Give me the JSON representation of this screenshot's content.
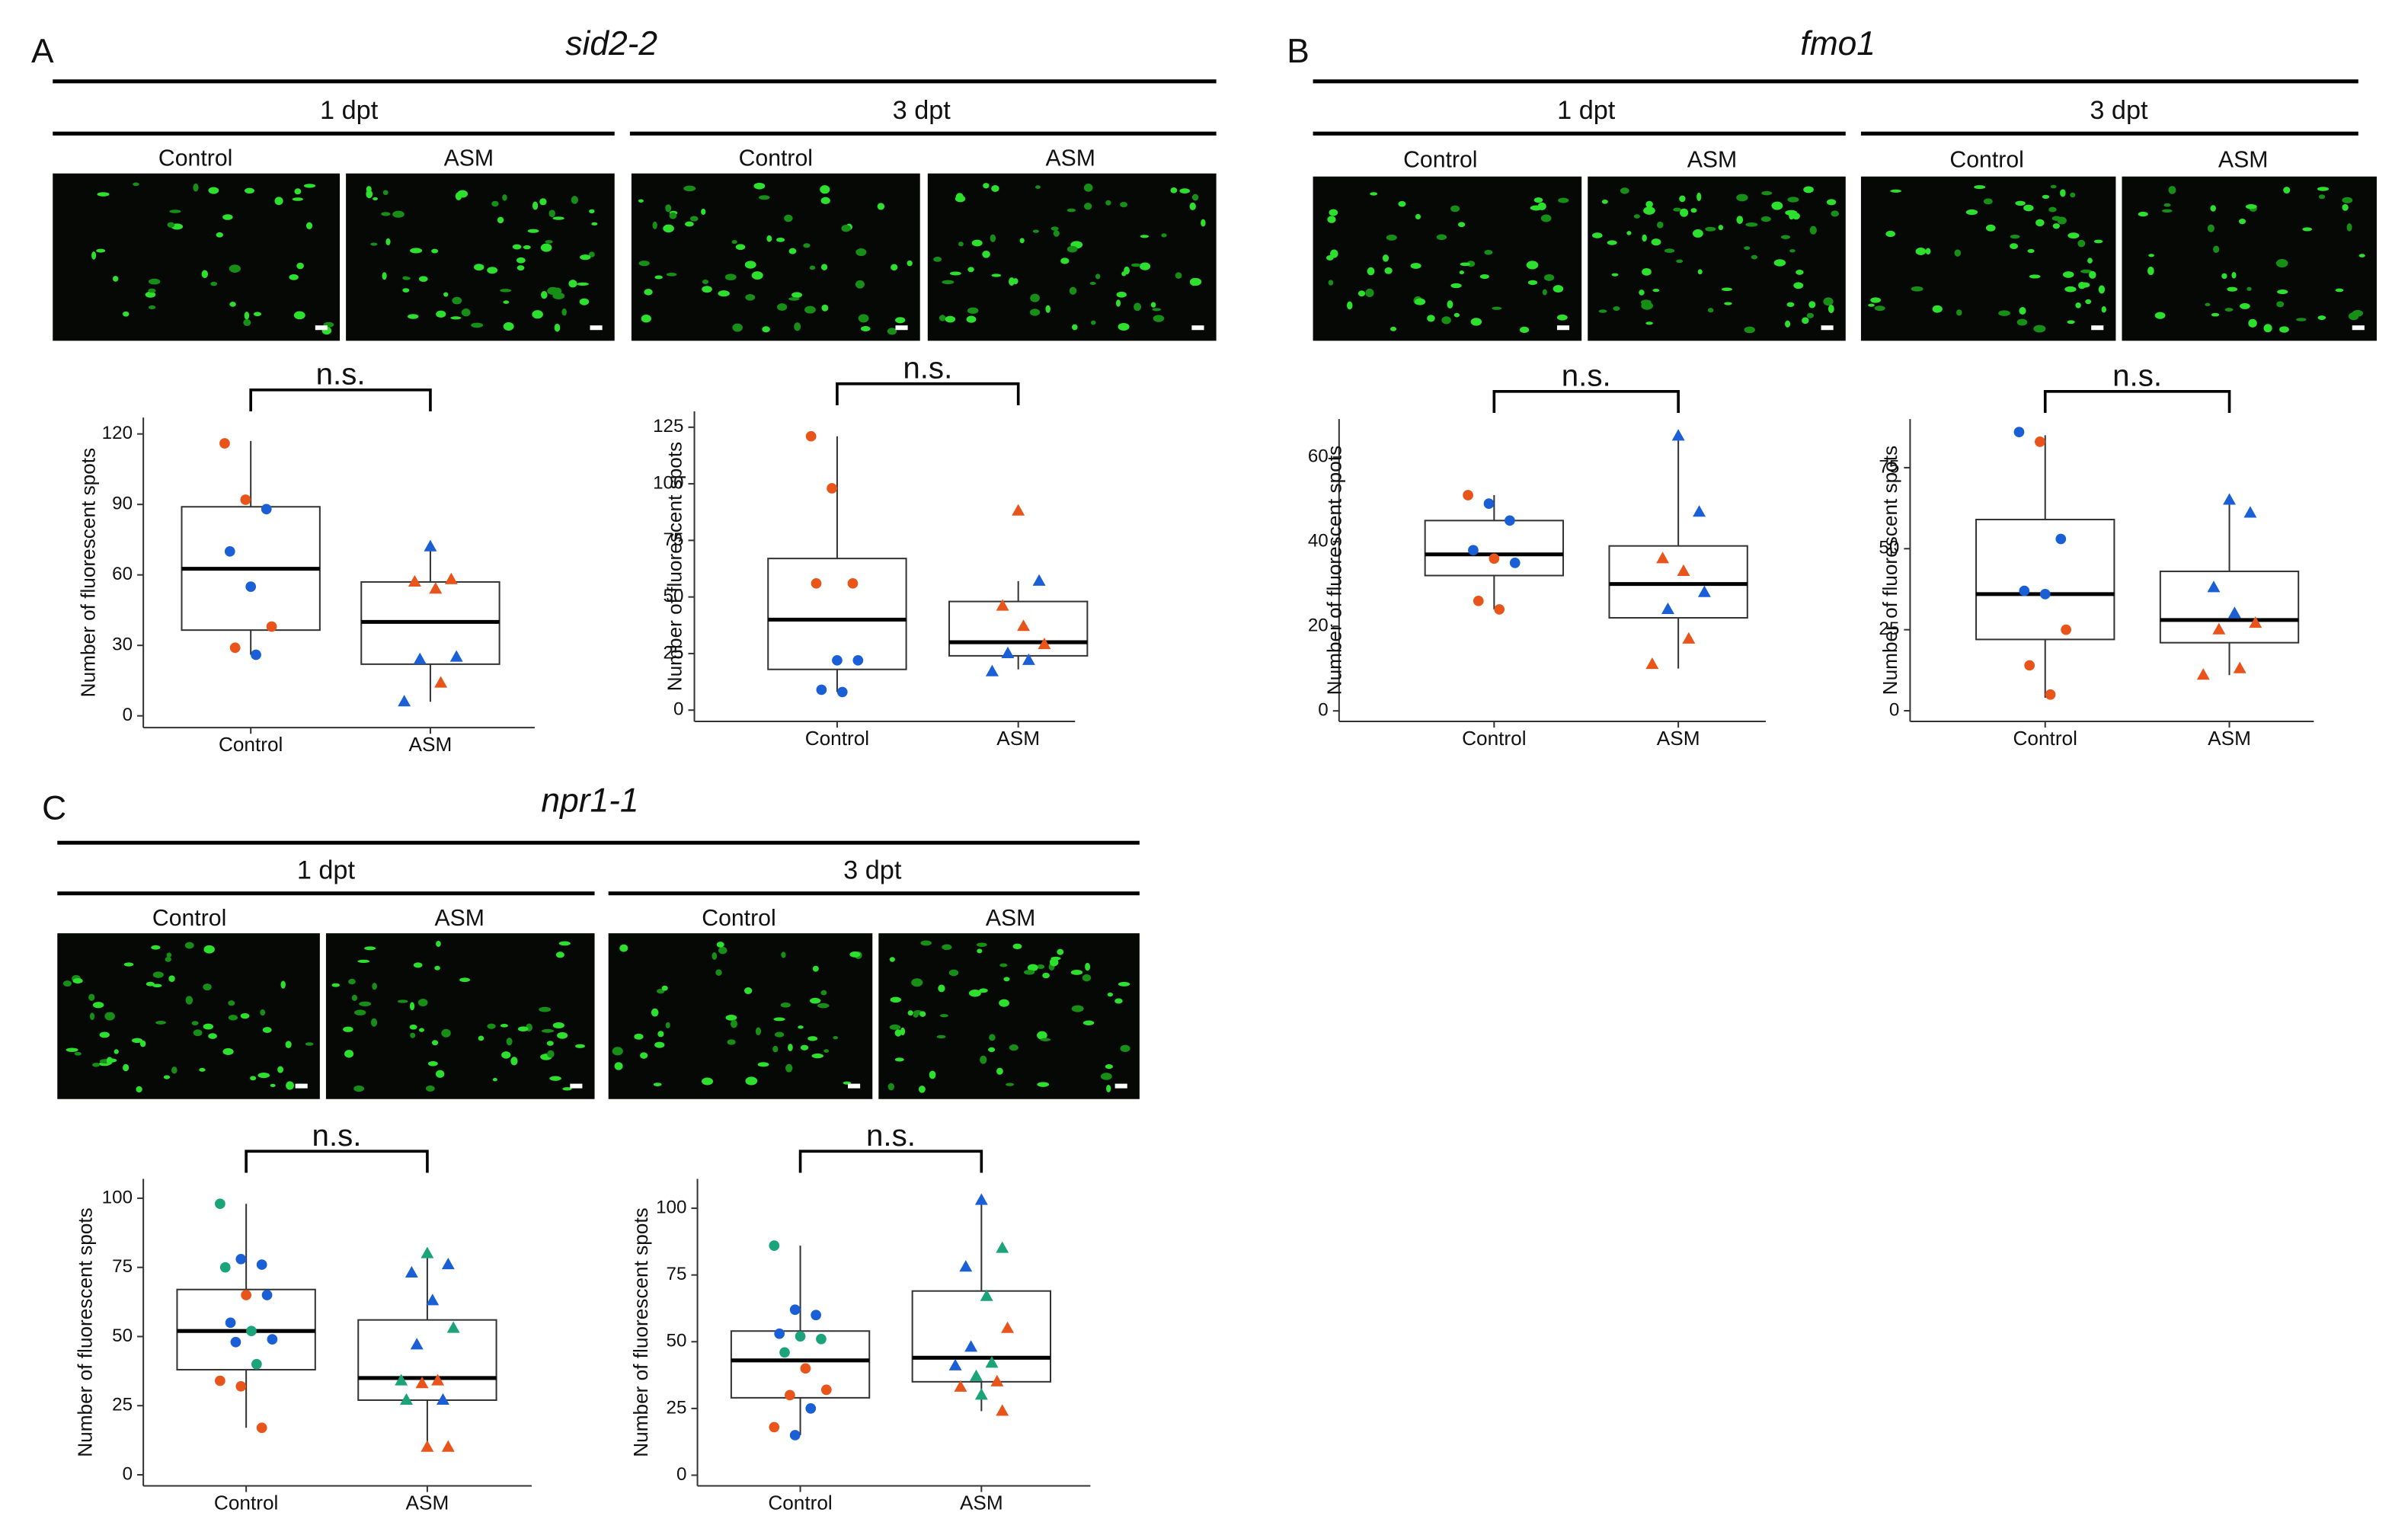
{
  "figure": {
    "panels": [
      {
        "label": "A",
        "title": "sid2-2",
        "timepoints": [
          {
            "label": "1 dpt",
            "images": [
              "Control",
              "ASM"
            ]
          },
          {
            "label": "3 dpt",
            "images": [
              "Control",
              "ASM"
            ]
          }
        ]
      },
      {
        "label": "B",
        "title": "fmo1",
        "timepoints": [
          {
            "label": "1 dpt",
            "images": [
              "Control",
              "ASM"
            ]
          },
          {
            "label": "3 dpt",
            "images": [
              "Control",
              "ASM"
            ]
          }
        ]
      },
      {
        "label": "C",
        "title": "npr1-1",
        "timepoints": [
          {
            "label": "1 dpt",
            "images": [
              "Control",
              "ASM"
            ]
          },
          {
            "label": "3 dpt",
            "images": [
              "Control",
              "ASM"
            ]
          }
        ]
      }
    ]
  },
  "chart_data": [
    {
      "type": "box",
      "ylabel": "Number of fluorescent spots",
      "annotation": "n.s.",
      "categories": [
        "Control",
        "ASM"
      ],
      "markers": [
        "circle",
        "triangle"
      ],
      "ylim": [
        -5,
        127
      ],
      "yticks": [
        0,
        30,
        60,
        90,
        120
      ],
      "boxes": [
        {
          "low": 26,
          "q1": 36.5,
          "median": 62.6,
          "q3": 89,
          "high": 117
        },
        {
          "low": 6,
          "q1": 22,
          "median": 40,
          "q3": 57,
          "high": 73
        }
      ],
      "points": [
        [
          {
            "value": 116,
            "color": "#e8541a"
          },
          {
            "value": 92,
            "color": "#e8541a"
          },
          {
            "value": 88,
            "color": "#1a5fd6"
          },
          {
            "value": 70,
            "color": "#1a5fd6"
          },
          {
            "value": 55,
            "color": "#1a5fd6"
          },
          {
            "value": 38,
            "color": "#e8541a"
          },
          {
            "value": 29,
            "color": "#e8541a"
          },
          {
            "value": 26,
            "color": "#1a5fd6"
          }
        ],
        [
          {
            "value": 72,
            "color": "#1a5fd6"
          },
          {
            "value": 58,
            "color": "#e8541a"
          },
          {
            "value": 57,
            "color": "#e8541a"
          },
          {
            "value": 54,
            "color": "#e8541a"
          },
          {
            "value": 25,
            "color": "#1a5fd6"
          },
          {
            "value": 24,
            "color": "#1a5fd6"
          },
          {
            "value": 14,
            "color": "#e8541a"
          },
          {
            "value": 6,
            "color": "#1a5fd6"
          }
        ]
      ]
    },
    {
      "type": "box",
      "ylabel": "Number of fluorescent spots",
      "annotation": "n.s.",
      "categories": [
        "Control",
        "ASM"
      ],
      "markers": [
        "circle",
        "triangle"
      ],
      "ylim": [
        -5,
        132
      ],
      "yticks": [
        0,
        25,
        50,
        75,
        100,
        125
      ],
      "boxes": [
        {
          "low": 8,
          "q1": 18,
          "median": 40,
          "q3": 67,
          "high": 121
        },
        {
          "low": 18,
          "q1": 24,
          "median": 30,
          "q3": 48,
          "high": 57
        }
      ],
      "points": [
        [
          {
            "value": 121,
            "color": "#e8541a"
          },
          {
            "value": 98,
            "color": "#e8541a"
          },
          {
            "value": 56,
            "color": "#e8541a"
          },
          {
            "value": 56,
            "color": "#e8541a"
          },
          {
            "value": 22,
            "color": "#1a5fd6"
          },
          {
            "value": 22,
            "color": "#1a5fd6"
          },
          {
            "value": 9,
            "color": "#1a5fd6"
          },
          {
            "value": 8,
            "color": "#1a5fd6"
          }
        ],
        [
          {
            "value": 88,
            "color": "#e8541a"
          },
          {
            "value": 57,
            "color": "#1a5fd6"
          },
          {
            "value": 46,
            "color": "#e8541a"
          },
          {
            "value": 37,
            "color": "#e8541a"
          },
          {
            "value": 29,
            "color": "#e8541a"
          },
          {
            "value": 25,
            "color": "#1a5fd6"
          },
          {
            "value": 22,
            "color": "#1a5fd6"
          },
          {
            "value": 17,
            "color": "#1a5fd6"
          }
        ]
      ]
    },
    {
      "type": "box",
      "ylabel": "Number of fluorescent spots",
      "annotation": "n.s.",
      "categories": [
        "Control",
        "ASM"
      ],
      "markers": [
        "circle",
        "triangle"
      ],
      "ylim": [
        -2.5,
        69
      ],
      "yticks": [
        0,
        20,
        40,
        60
      ],
      "boxes": [
        {
          "low": 24,
          "q1": 32,
          "median": 37,
          "q3": 45,
          "high": 51
        },
        {
          "low": 10,
          "q1": 22,
          "median": 30,
          "q3": 39,
          "high": 65
        }
      ],
      "points": [
        [
          {
            "value": 51,
            "color": "#e8541a"
          },
          {
            "value": 49,
            "color": "#1a5fd6"
          },
          {
            "value": 45,
            "color": "#1a5fd6"
          },
          {
            "value": 38,
            "color": "#1a5fd6"
          },
          {
            "value": 36,
            "color": "#e8541a"
          },
          {
            "value": 35,
            "color": "#1a5fd6"
          },
          {
            "value": 26,
            "color": "#e8541a"
          },
          {
            "value": 24,
            "color": "#e8541a"
          }
        ],
        [
          {
            "value": 65,
            "color": "#1a5fd6"
          },
          {
            "value": 47,
            "color": "#1a5fd6"
          },
          {
            "value": 36,
            "color": "#e8541a"
          },
          {
            "value": 33,
            "color": "#e8541a"
          },
          {
            "value": 28,
            "color": "#1a5fd6"
          },
          {
            "value": 24,
            "color": "#1a5fd6"
          },
          {
            "value": 17,
            "color": "#e8541a"
          },
          {
            "value": 11,
            "color": "#e8541a"
          }
        ]
      ]
    },
    {
      "type": "box",
      "ylabel": "Number of fluorescent spots",
      "annotation": "n.s.",
      "categories": [
        "Control",
        "ASM"
      ],
      "markers": [
        "circle",
        "triangle"
      ],
      "ylim": [
        -3.3,
        90
      ],
      "yticks": [
        0,
        25,
        50,
        75
      ],
      "boxes": [
        {
          "low": 4,
          "q1": 22,
          "median": 36,
          "q3": 59,
          "high": 85
        },
        {
          "low": 11,
          "q1": 21,
          "median": 28,
          "q3": 43,
          "high": 64
        }
      ],
      "points": [
        [
          {
            "value": 86,
            "color": "#1a5fd6"
          },
          {
            "value": 83,
            "color": "#e8541a"
          },
          {
            "value": 53,
            "color": "#1a5fd6"
          },
          {
            "value": 37,
            "color": "#1a5fd6"
          },
          {
            "value": 36,
            "color": "#1a5fd6"
          },
          {
            "value": 25,
            "color": "#e8541a"
          },
          {
            "value": 14,
            "color": "#e8541a"
          },
          {
            "value": 5,
            "color": "#e8541a"
          }
        ],
        [
          {
            "value": 65,
            "color": "#1a5fd6"
          },
          {
            "value": 61,
            "color": "#1a5fd6"
          },
          {
            "value": 38,
            "color": "#1a5fd6"
          },
          {
            "value": 30,
            "color": "#1a5fd6"
          },
          {
            "value": 27,
            "color": "#e8541a"
          },
          {
            "value": 25,
            "color": "#e8541a"
          },
          {
            "value": 13,
            "color": "#e8541a"
          },
          {
            "value": 11,
            "color": "#e8541a"
          }
        ]
      ]
    },
    {
      "type": "box",
      "ylabel": "Number of fluorescent spots",
      "annotation": "n.s.",
      "categories": [
        "Control",
        "ASM"
      ],
      "markers": [
        "circle",
        "triangle"
      ],
      "ylim": [
        -4,
        107
      ],
      "yticks": [
        0,
        25,
        50,
        75,
        100
      ],
      "boxes": [
        {
          "low": 17,
          "q1": 38,
          "median": 52,
          "q3": 67,
          "high": 98
        },
        {
          "low": 10,
          "q1": 27,
          "median": 35,
          "q3": 56,
          "high": 80
        }
      ],
      "points": [
        [
          {
            "value": 98,
            "color": "#1ba37a"
          },
          {
            "value": 78,
            "color": "#1a5fd6"
          },
          {
            "value": 76,
            "color": "#1a5fd6"
          },
          {
            "value": 75,
            "color": "#1ba37a"
          },
          {
            "value": 65,
            "color": "#e8541a"
          },
          {
            "value": 65,
            "color": "#1a5fd6"
          },
          {
            "value": 55,
            "color": "#1a5fd6"
          },
          {
            "value": 52,
            "color": "#1ba37a"
          },
          {
            "value": 49,
            "color": "#1a5fd6"
          },
          {
            "value": 48,
            "color": "#1a5fd6"
          },
          {
            "value": 40,
            "color": "#1ba37a"
          },
          {
            "value": 34,
            "color": "#e8541a"
          },
          {
            "value": 32,
            "color": "#e8541a"
          },
          {
            "value": 17,
            "color": "#e8541a"
          }
        ],
        [
          {
            "value": 80,
            "color": "#1ba37a"
          },
          {
            "value": 76,
            "color": "#1a5fd6"
          },
          {
            "value": 73,
            "color": "#1a5fd6"
          },
          {
            "value": 63,
            "color": "#1a5fd6"
          },
          {
            "value": 53,
            "color": "#1ba37a"
          },
          {
            "value": 47,
            "color": "#1a5fd6"
          },
          {
            "value": 34,
            "color": "#e8541a"
          },
          {
            "value": 34,
            "color": "#1ba37a"
          },
          {
            "value": 33,
            "color": "#e8541a"
          },
          {
            "value": 27,
            "color": "#1a5fd6"
          },
          {
            "value": 27,
            "color": "#1ba37a"
          },
          {
            "value": 10,
            "color": "#e8541a"
          },
          {
            "value": 10,
            "color": "#e8541a"
          }
        ]
      ]
    },
    {
      "type": "box",
      "ylabel": "Number of fluorescent spots",
      "annotation": "n.s.",
      "categories": [
        "Control",
        "ASM"
      ],
      "markers": [
        "circle",
        "triangle"
      ],
      "ylim": [
        -4,
        111
      ],
      "yticks": [
        0,
        25,
        50,
        75,
        100
      ],
      "boxes": [
        {
          "low": 15,
          "q1": 29,
          "median": 43,
          "q3": 54,
          "high": 86
        },
        {
          "low": 24,
          "q1": 35,
          "median": 44,
          "q3": 69,
          "high": 103
        }
      ],
      "points": [
        [
          {
            "value": 86,
            "color": "#1ba37a"
          },
          {
            "value": 62,
            "color": "#1a5fd6"
          },
          {
            "value": 60,
            "color": "#1a5fd6"
          },
          {
            "value": 53,
            "color": "#1a5fd6"
          },
          {
            "value": 52,
            "color": "#1ba37a"
          },
          {
            "value": 51,
            "color": "#1ba37a"
          },
          {
            "value": 46,
            "color": "#1ba37a"
          },
          {
            "value": 40,
            "color": "#e8541a"
          },
          {
            "value": 32,
            "color": "#e8541a"
          },
          {
            "value": 30,
            "color": "#e8541a"
          },
          {
            "value": 25,
            "color": "#1a5fd6"
          },
          {
            "value": 18,
            "color": "#e8541a"
          },
          {
            "value": 15,
            "color": "#1a5fd6"
          }
        ],
        [
          {
            "value": 103,
            "color": "#1a5fd6"
          },
          {
            "value": 85,
            "color": "#1ba37a"
          },
          {
            "value": 78,
            "color": "#1a5fd6"
          },
          {
            "value": 67,
            "color": "#1ba37a"
          },
          {
            "value": 55,
            "color": "#e8541a"
          },
          {
            "value": 48,
            "color": "#1a5fd6"
          },
          {
            "value": 42,
            "color": "#1ba37a"
          },
          {
            "value": 41,
            "color": "#1a5fd6"
          },
          {
            "value": 37,
            "color": "#1ba37a"
          },
          {
            "value": 35,
            "color": "#e8541a"
          },
          {
            "value": 33,
            "color": "#e8541a"
          },
          {
            "value": 30,
            "color": "#1ba37a"
          },
          {
            "value": 24,
            "color": "#e8541a"
          }
        ]
      ]
    }
  ]
}
